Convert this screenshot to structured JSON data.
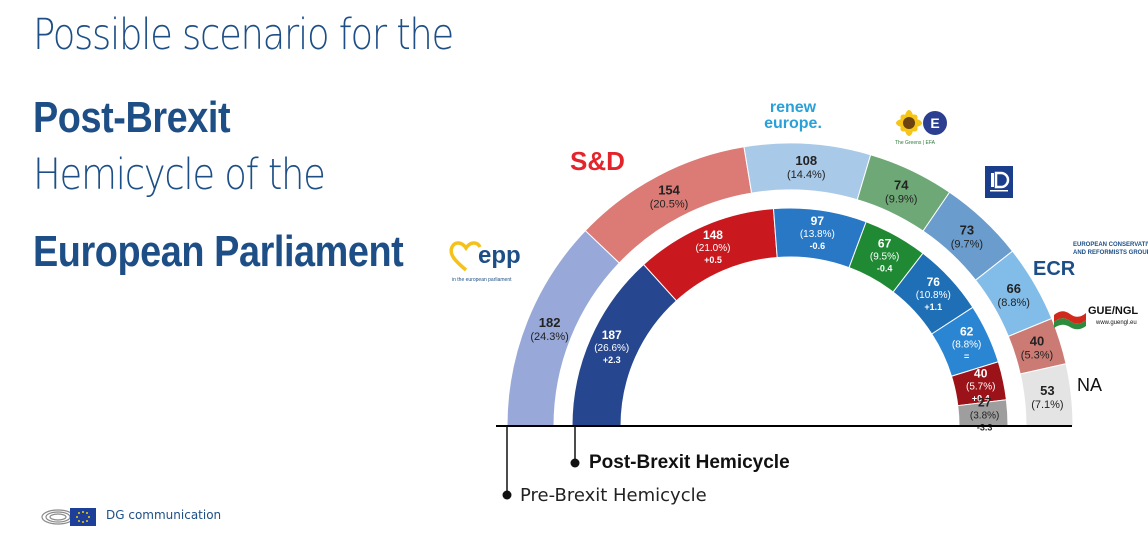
{
  "title": {
    "line1": "Possible scenario for the",
    "line2": "Post-Brexit",
    "line3": "Hemicycle of the",
    "line4": "European Parliament"
  },
  "chart_data": {
    "type": "semicircle",
    "series": [
      {
        "name": "Pre-Brexit Hemicycle",
        "segments": [
          {
            "group": "EPP",
            "seats": 182,
            "pct": "(24.3%)",
            "color": "#98a8d8"
          },
          {
            "group": "S&D",
            "seats": 154,
            "pct": "(20.5%)",
            "color": "#dc7b76"
          },
          {
            "group": "Renew Europe",
            "seats": 108,
            "pct": "(14.4%)",
            "color": "#a9c9e8"
          },
          {
            "group": "Greens/EFA",
            "seats": 74,
            "pct": "(9.9%)",
            "color": "#6ea876"
          },
          {
            "group": "ID",
            "seats": 73,
            "pct": "(9.7%)",
            "color": "#6a9ccd"
          },
          {
            "group": "ECR",
            "seats": 66,
            "pct": "(8.8%)",
            "color": "#82bce8"
          },
          {
            "group": "GUE/NGL",
            "seats": 40,
            "pct": "(5.3%)",
            "color": "#cc7b74"
          },
          {
            "group": "NA",
            "seats": 53,
            "pct": "(7.1%)",
            "color": "#e4e4e4"
          }
        ]
      },
      {
        "name": "Post-Brexit Hemicycle",
        "segments": [
          {
            "group": "EPP",
            "seats": 187,
            "pct": "(26.6%)",
            "change": "+2.3",
            "color": "#26478f"
          },
          {
            "group": "S&D",
            "seats": 148,
            "pct": "(21.0%)",
            "change": "+0.5",
            "color": "#c9191e"
          },
          {
            "group": "Renew Europe",
            "seats": 97,
            "pct": "(13.8%)",
            "change": "-0.6",
            "color": "#2978c5"
          },
          {
            "group": "Greens/EFA",
            "seats": 67,
            "pct": "(9.5%)",
            "change": "-0.4",
            "color": "#1f8a33"
          },
          {
            "group": "ID",
            "seats": 76,
            "pct": "(10.8%)",
            "change": "+1.1",
            "color": "#1e6fb5"
          },
          {
            "group": "ECR",
            "seats": 62,
            "pct": "(8.8%)",
            "change": "=",
            "color": "#2a86d3"
          },
          {
            "group": "GUE/NGL",
            "seats": 40,
            "pct": "(5.7%)",
            "change": "+0.4",
            "color": "#9b1318"
          },
          {
            "group": "NA",
            "seats": 27,
            "pct": "(3.8%)",
            "change": "-3.3",
            "color": "#9e9e9e"
          }
        ]
      }
    ]
  },
  "labels": {
    "post_brexit": "Post-Brexit Hemicycle",
    "pre_brexit": "Pre-Brexit Hemicycle",
    "na": "NA"
  },
  "logos": {
    "renew": "renew europe.",
    "sd": "S&D",
    "epp": "epp",
    "epp_sub": "in the european parliament",
    "greens_sub": "The Greens | EFA",
    "ecr": "ECR",
    "ecr_sub": "EUROPEAN CONSERVATIVES AND REFORMISTS GROUP",
    "gue": "GUE/NGL",
    "gue_sub": "www.guengl.eu"
  },
  "footer": {
    "text": "DG communication"
  }
}
